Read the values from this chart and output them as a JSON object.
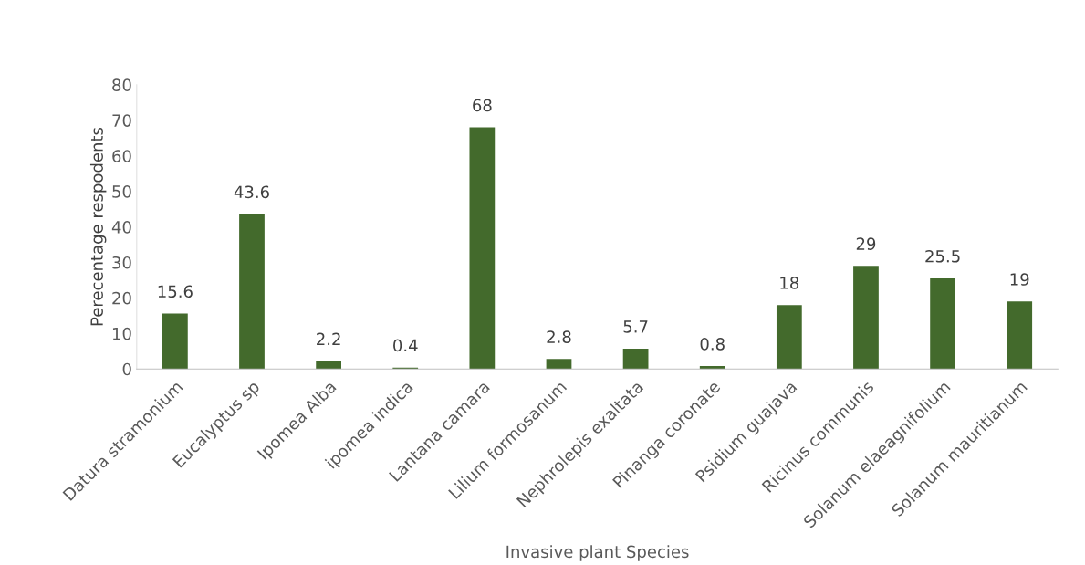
{
  "chart_data": {
    "type": "bar",
    "xlabel": "Invasive plant Species",
    "ylabel": "Perecentage respodents",
    "categories": [
      "Datura stramonium",
      "Eucalyptus sp",
      "Ipomea Alba",
      "ipomea indica",
      "Lantana camara",
      "Lilium formosanum",
      "Nephrolepis exaltata",
      "Pinanga coronate",
      "Psidium guajava",
      "Ricinus communis",
      "Solanum elaeagnifolium",
      "Solanum mauritianum"
    ],
    "values": [
      15.6,
      43.6,
      2.2,
      0.4,
      68,
      2.8,
      5.7,
      0.8,
      18,
      29,
      25.5,
      19
    ],
    "color": "#436a2c",
    "ylim": [
      0,
      80
    ],
    "yticks": [
      0,
      10,
      20,
      30,
      40,
      50,
      60,
      70,
      80
    ],
    "grid": false,
    "data_labels": true,
    "legend": false
  }
}
